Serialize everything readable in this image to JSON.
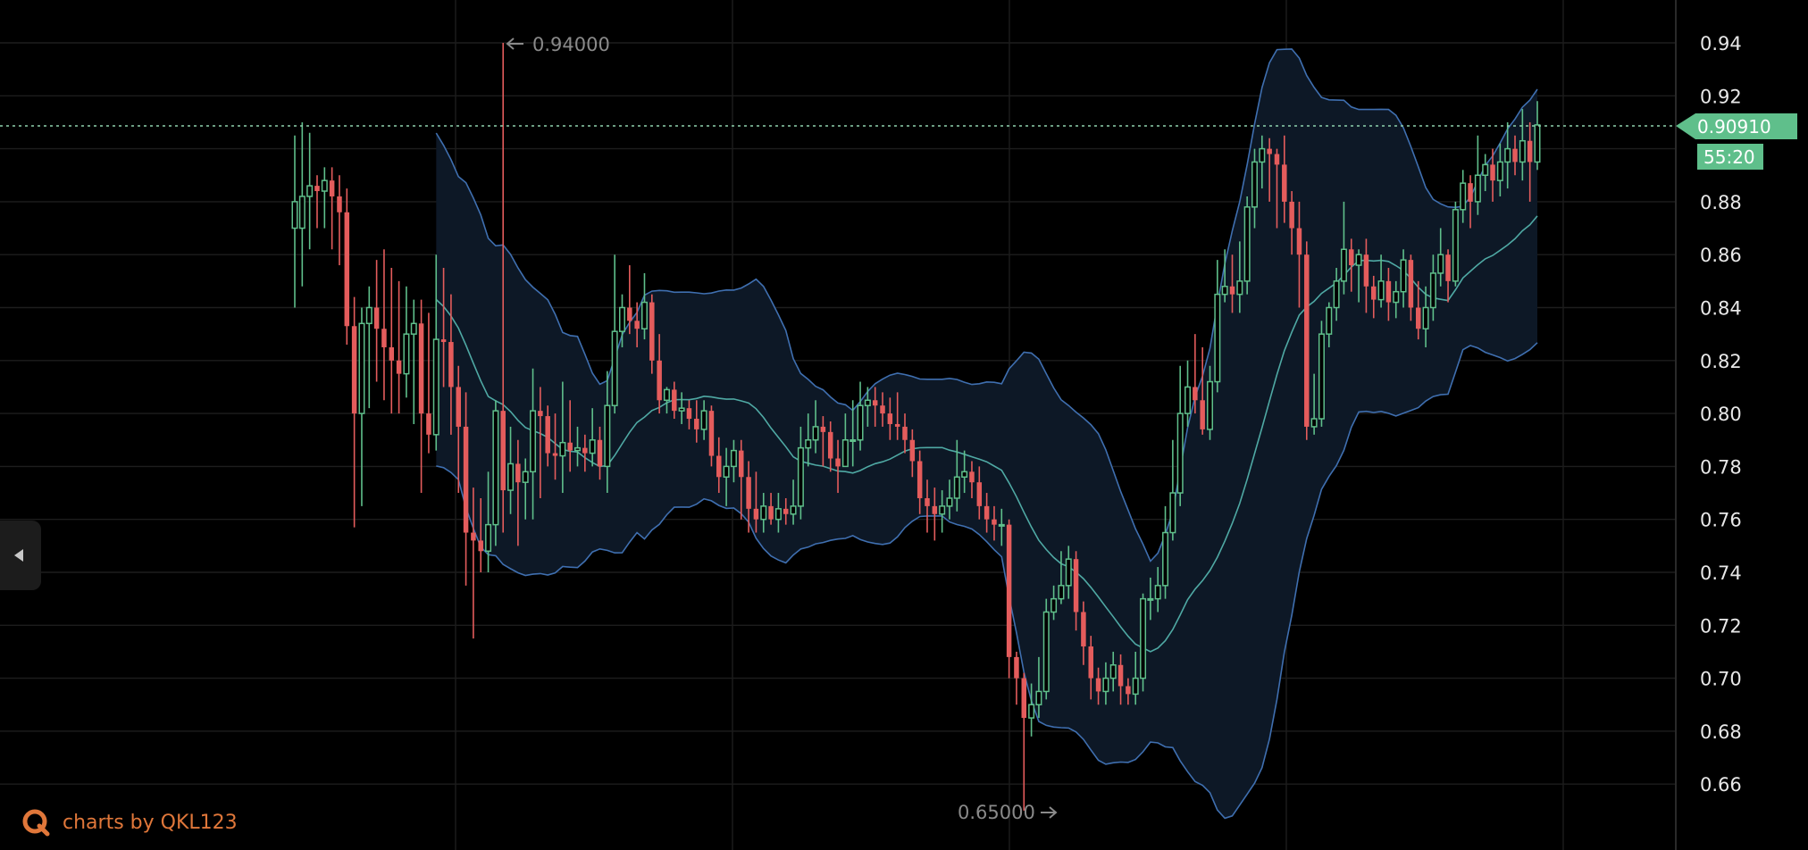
{
  "chart_data": {
    "type": "candlestick",
    "ylim": [
      0.645,
      0.95
    ],
    "y_ticks": [
      "0.94",
      "0.92",
      "0.88",
      "0.86",
      "0.84",
      "0.82",
      "0.80",
      "0.78",
      "0.76",
      "0.74",
      "0.72",
      "0.70",
      "0.68",
      "0.66"
    ],
    "current_price": "0.90910",
    "countdown": "55:20",
    "annotations": {
      "high": "0.94000",
      "low": "0.65000"
    },
    "colors": {
      "up": "#5fbf8b",
      "down": "#e45c5c",
      "band_line": "#3f6fb0",
      "band_fill": "#0d1826",
      "ma_line": "#4fa9a4",
      "grid": "#1d1d1d"
    },
    "candles": [
      [
        0.87,
        0.88,
        0.905,
        0.84
      ],
      [
        0.87,
        0.882,
        0.91,
        0.848
      ],
      [
        0.882,
        0.886,
        0.906,
        0.862
      ],
      [
        0.886,
        0.884,
        0.89,
        0.87
      ],
      [
        0.884,
        0.888,
        0.893,
        0.87
      ],
      [
        0.888,
        0.882,
        0.893,
        0.862
      ],
      [
        0.882,
        0.876,
        0.89,
        0.856
      ],
      [
        0.876,
        0.833,
        0.885,
        0.826
      ],
      [
        0.833,
        0.8,
        0.844,
        0.757
      ],
      [
        0.8,
        0.834,
        0.84,
        0.765
      ],
      [
        0.834,
        0.84,
        0.848,
        0.802
      ],
      [
        0.84,
        0.832,
        0.858,
        0.812
      ],
      [
        0.832,
        0.825,
        0.862,
        0.805
      ],
      [
        0.825,
        0.82,
        0.855,
        0.8
      ],
      [
        0.82,
        0.815,
        0.85,
        0.8
      ],
      [
        0.815,
        0.83,
        0.848,
        0.806
      ],
      [
        0.83,
        0.834,
        0.843,
        0.796
      ],
      [
        0.834,
        0.8,
        0.843,
        0.77
      ],
      [
        0.8,
        0.792,
        0.838,
        0.785
      ],
      [
        0.792,
        0.828,
        0.86,
        0.786
      ],
      [
        0.828,
        0.827,
        0.855,
        0.81
      ],
      [
        0.827,
        0.81,
        0.845,
        0.792
      ],
      [
        0.81,
        0.795,
        0.818,
        0.77
      ],
      [
        0.795,
        0.755,
        0.808,
        0.735
      ],
      [
        0.755,
        0.752,
        0.772,
        0.715
      ],
      [
        0.752,
        0.748,
        0.768,
        0.74
      ],
      [
        0.748,
        0.758,
        0.778,
        0.74
      ],
      [
        0.758,
        0.801,
        0.805,
        0.75
      ],
      [
        0.801,
        0.771,
        0.94,
        0.755
      ],
      [
        0.771,
        0.781,
        0.795,
        0.762
      ],
      [
        0.781,
        0.774,
        0.79,
        0.75
      ],
      [
        0.774,
        0.778,
        0.783,
        0.76
      ],
      [
        0.778,
        0.801,
        0.817,
        0.76
      ],
      [
        0.801,
        0.799,
        0.81,
        0.768
      ],
      [
        0.799,
        0.785,
        0.803,
        0.78
      ],
      [
        0.785,
        0.784,
        0.8,
        0.775
      ],
      [
        0.784,
        0.789,
        0.812,
        0.77
      ],
      [
        0.789,
        0.786,
        0.805,
        0.778
      ],
      [
        0.786,
        0.787,
        0.795,
        0.78
      ],
      [
        0.787,
        0.785,
        0.792,
        0.778
      ],
      [
        0.785,
        0.79,
        0.802,
        0.78
      ],
      [
        0.79,
        0.78,
        0.795,
        0.775
      ],
      [
        0.78,
        0.803,
        0.816,
        0.77
      ],
      [
        0.803,
        0.831,
        0.86,
        0.8
      ],
      [
        0.831,
        0.84,
        0.845,
        0.825
      ],
      [
        0.84,
        0.835,
        0.856,
        0.83
      ],
      [
        0.835,
        0.832,
        0.842,
        0.825
      ],
      [
        0.832,
        0.842,
        0.853,
        0.828
      ],
      [
        0.842,
        0.82,
        0.845,
        0.815
      ],
      [
        0.82,
        0.805,
        0.83,
        0.8
      ],
      [
        0.805,
        0.809,
        0.81,
        0.8
      ],
      [
        0.809,
        0.801,
        0.812,
        0.798
      ],
      [
        0.801,
        0.802,
        0.808,
        0.796
      ],
      [
        0.802,
        0.798,
        0.805,
        0.794
      ],
      [
        0.798,
        0.794,
        0.805,
        0.789
      ],
      [
        0.794,
        0.801,
        0.805,
        0.79
      ],
      [
        0.801,
        0.784,
        0.803,
        0.78
      ],
      [
        0.784,
        0.776,
        0.791,
        0.77
      ],
      [
        0.776,
        0.78,
        0.787,
        0.765
      ],
      [
        0.78,
        0.786,
        0.79,
        0.774
      ],
      [
        0.786,
        0.776,
        0.79,
        0.76
      ],
      [
        0.776,
        0.764,
        0.782,
        0.755
      ],
      [
        0.764,
        0.76,
        0.778,
        0.755
      ],
      [
        0.76,
        0.765,
        0.77,
        0.755
      ],
      [
        0.765,
        0.76,
        0.77,
        0.758
      ],
      [
        0.76,
        0.764,
        0.77,
        0.755
      ],
      [
        0.764,
        0.762,
        0.768,
        0.758
      ],
      [
        0.762,
        0.765,
        0.775,
        0.758
      ],
      [
        0.765,
        0.787,
        0.795,
        0.76
      ],
      [
        0.787,
        0.79,
        0.8,
        0.78
      ],
      [
        0.79,
        0.795,
        0.805,
        0.785
      ],
      [
        0.795,
        0.793,
        0.799,
        0.78
      ],
      [
        0.793,
        0.783,
        0.797,
        0.778
      ],
      [
        0.783,
        0.78,
        0.79,
        0.77
      ],
      [
        0.78,
        0.79,
        0.8,
        0.78
      ],
      [
        0.79,
        0.79,
        0.805,
        0.78
      ],
      [
        0.79,
        0.803,
        0.812,
        0.786
      ],
      [
        0.803,
        0.805,
        0.81,
        0.795
      ],
      [
        0.805,
        0.803,
        0.81,
        0.795
      ],
      [
        0.803,
        0.8,
        0.808,
        0.795
      ],
      [
        0.8,
        0.796,
        0.806,
        0.79
      ],
      [
        0.796,
        0.795,
        0.808,
        0.79
      ],
      [
        0.795,
        0.79,
        0.8,
        0.785
      ],
      [
        0.79,
        0.782,
        0.794,
        0.776
      ],
      [
        0.782,
        0.768,
        0.786,
        0.762
      ],
      [
        0.768,
        0.765,
        0.775,
        0.755
      ],
      [
        0.765,
        0.762,
        0.772,
        0.752
      ],
      [
        0.762,
        0.765,
        0.771,
        0.755
      ],
      [
        0.765,
        0.768,
        0.775,
        0.76
      ],
      [
        0.768,
        0.776,
        0.79,
        0.763
      ],
      [
        0.776,
        0.778,
        0.786,
        0.77
      ],
      [
        0.778,
        0.774,
        0.782,
        0.768
      ],
      [
        0.774,
        0.765,
        0.78,
        0.76
      ],
      [
        0.765,
        0.76,
        0.77,
        0.755
      ],
      [
        0.76,
        0.758,
        0.765,
        0.752
      ],
      [
        0.758,
        0.758,
        0.764,
        0.75
      ],
      [
        0.758,
        0.708,
        0.76,
        0.7
      ],
      [
        0.708,
        0.7,
        0.71,
        0.69
      ],
      [
        0.7,
        0.685,
        0.702,
        0.65
      ],
      [
        0.685,
        0.69,
        0.698,
        0.678
      ],
      [
        0.69,
        0.695,
        0.708,
        0.685
      ],
      [
        0.695,
        0.725,
        0.73,
        0.692
      ],
      [
        0.725,
        0.73,
        0.735,
        0.722
      ],
      [
        0.73,
        0.735,
        0.748,
        0.728
      ],
      [
        0.735,
        0.745,
        0.75,
        0.73
      ],
      [
        0.745,
        0.725,
        0.748,
        0.718
      ],
      [
        0.725,
        0.712,
        0.729,
        0.705
      ],
      [
        0.712,
        0.7,
        0.716,
        0.692
      ],
      [
        0.7,
        0.695,
        0.704,
        0.69
      ],
      [
        0.695,
        0.7,
        0.706,
        0.69
      ],
      [
        0.7,
        0.705,
        0.71,
        0.695
      ],
      [
        0.705,
        0.697,
        0.709,
        0.69
      ],
      [
        0.697,
        0.694,
        0.7,
        0.69
      ],
      [
        0.694,
        0.7,
        0.71,
        0.69
      ],
      [
        0.7,
        0.73,
        0.732,
        0.695
      ],
      [
        0.73,
        0.73,
        0.738,
        0.722
      ],
      [
        0.73,
        0.735,
        0.742,
        0.725
      ],
      [
        0.735,
        0.755,
        0.765,
        0.73
      ],
      [
        0.755,
        0.77,
        0.79,
        0.752
      ],
      [
        0.77,
        0.8,
        0.818,
        0.765
      ],
      [
        0.8,
        0.81,
        0.82,
        0.795
      ],
      [
        0.81,
        0.805,
        0.83,
        0.8
      ],
      [
        0.805,
        0.794,
        0.825,
        0.792
      ],
      [
        0.794,
        0.812,
        0.818,
        0.79
      ],
      [
        0.812,
        0.845,
        0.858,
        0.808
      ],
      [
        0.845,
        0.848,
        0.862,
        0.842
      ],
      [
        0.848,
        0.845,
        0.86,
        0.838
      ],
      [
        0.845,
        0.85,
        0.865,
        0.838
      ],
      [
        0.85,
        0.878,
        0.882,
        0.845
      ],
      [
        0.878,
        0.895,
        0.9,
        0.87
      ],
      [
        0.895,
        0.9,
        0.905,
        0.885
      ],
      [
        0.9,
        0.898,
        0.904,
        0.88
      ],
      [
        0.898,
        0.894,
        0.9,
        0.87
      ],
      [
        0.894,
        0.88,
        0.905,
        0.872
      ],
      [
        0.88,
        0.87,
        0.884,
        0.86
      ],
      [
        0.87,
        0.86,
        0.88,
        0.84
      ],
      [
        0.86,
        0.795,
        0.865,
        0.79
      ],
      [
        0.795,
        0.798,
        0.815,
        0.792
      ],
      [
        0.798,
        0.83,
        0.835,
        0.795
      ],
      [
        0.83,
        0.84,
        0.842,
        0.825
      ],
      [
        0.84,
        0.85,
        0.855,
        0.835
      ],
      [
        0.85,
        0.862,
        0.88,
        0.845
      ],
      [
        0.862,
        0.856,
        0.866,
        0.846
      ],
      [
        0.856,
        0.86,
        0.862,
        0.842
      ],
      [
        0.86,
        0.848,
        0.866,
        0.838
      ],
      [
        0.848,
        0.843,
        0.852,
        0.836
      ],
      [
        0.843,
        0.85,
        0.86,
        0.84
      ],
      [
        0.85,
        0.842,
        0.855,
        0.835
      ],
      [
        0.842,
        0.846,
        0.85,
        0.836
      ],
      [
        0.846,
        0.858,
        0.862,
        0.84
      ],
      [
        0.858,
        0.84,
        0.86,
        0.835
      ],
      [
        0.84,
        0.832,
        0.85,
        0.828
      ],
      [
        0.832,
        0.84,
        0.848,
        0.825
      ],
      [
        0.84,
        0.853,
        0.86,
        0.835
      ],
      [
        0.853,
        0.86,
        0.87,
        0.848
      ],
      [
        0.86,
        0.85,
        0.862,
        0.842
      ],
      [
        0.85,
        0.877,
        0.88,
        0.848
      ],
      [
        0.877,
        0.887,
        0.892,
        0.872
      ],
      [
        0.887,
        0.88,
        0.89,
        0.87
      ],
      [
        0.88,
        0.89,
        0.905,
        0.875
      ],
      [
        0.89,
        0.894,
        0.898,
        0.884
      ],
      [
        0.894,
        0.888,
        0.9,
        0.88
      ],
      [
        0.888,
        0.895,
        0.902,
        0.882
      ],
      [
        0.895,
        0.9,
        0.91,
        0.885
      ],
      [
        0.9,
        0.895,
        0.905,
        0.89
      ],
      [
        0.895,
        0.903,
        0.915,
        0.888
      ],
      [
        0.903,
        0.895,
        0.91,
        0.88
      ],
      [
        0.895,
        0.909,
        0.918,
        0.892
      ]
    ]
  },
  "ui": {
    "collapse_icon": "caret-left-icon",
    "brand_icon": "qkl123-logo-icon",
    "brand_text": "charts by QKL123"
  }
}
